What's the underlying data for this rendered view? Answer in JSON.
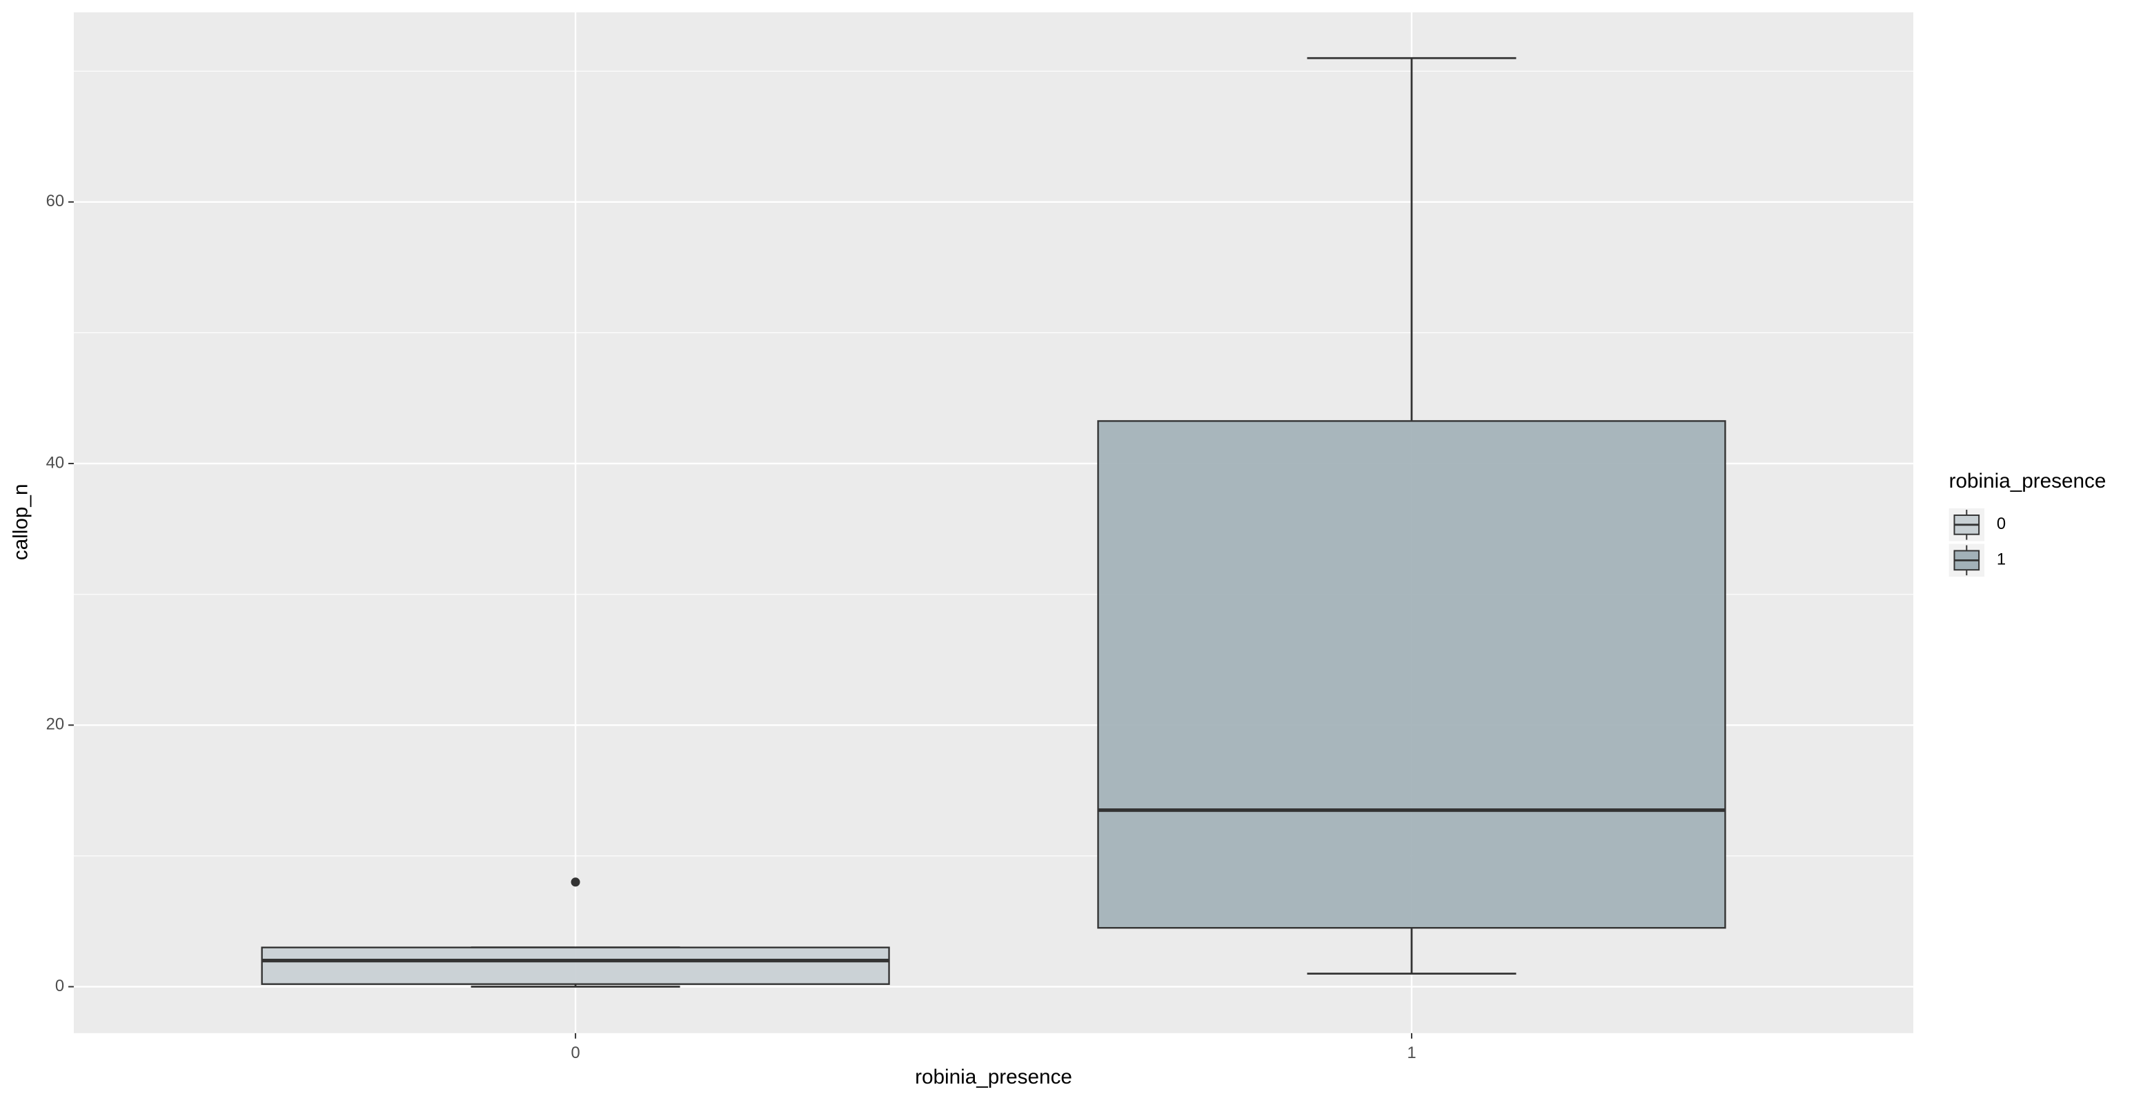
{
  "chart_data": {
    "type": "boxplot",
    "x_label": "robinia_presence",
    "y_label": "callop_n",
    "legend_title": "robinia_presence",
    "categories": [
      "0",
      "1"
    ],
    "boxes": [
      {
        "min": 0,
        "q1": 0.2,
        "median": 2,
        "q3": 3,
        "max": 3,
        "outliers": [
          8
        ],
        "color": "#c8d0d4"
      },
      {
        "min": 1,
        "q1": 4.5,
        "median": 13.5,
        "q3": 43.25,
        "max": 71,
        "outliers": [],
        "color": "#a2b1b8"
      }
    ],
    "ylim": [
      -3.55,
      74.5
    ],
    "yticks": [
      0,
      20,
      40,
      60
    ],
    "grid": true,
    "legend_position": "right"
  }
}
